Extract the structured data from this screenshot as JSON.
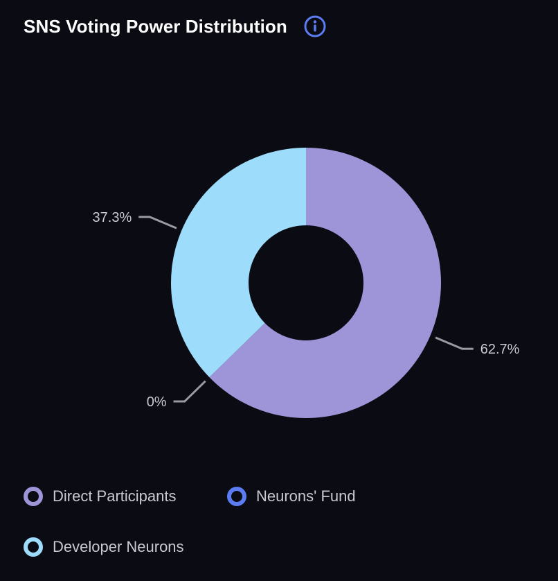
{
  "title": "SNS Voting Power Distribution",
  "info_icon": "info-circle-icon",
  "colors": {
    "background": "#0b0b14",
    "direct_participants": "#9d95d8",
    "neurons_fund": "#5b7cf2",
    "developer_neurons": "#9ddcfb",
    "label_text": "#c9c9d3",
    "leader_line": "#9a9aa3",
    "info_icon": "#5b7cf2"
  },
  "chart_data": {
    "type": "pie",
    "donut": true,
    "title": "SNS Voting Power Distribution",
    "series": [
      {
        "name": "Direct Participants",
        "value": 62.7,
        "label": "62.7%",
        "color": "#9d95d8"
      },
      {
        "name": "Neurons' Fund",
        "value": 0,
        "label": "0%",
        "color": "#5b7cf2"
      },
      {
        "name": "Developer Neurons",
        "value": 37.3,
        "label": "37.3%",
        "color": "#9ddcfb"
      }
    ],
    "legend_placement": "bottom"
  },
  "legend": [
    {
      "label": "Direct Participants",
      "color": "#9d95d8"
    },
    {
      "label": "Neurons' Fund",
      "color": "#5b7cf2"
    },
    {
      "label": "Developer Neurons",
      "color": "#9ddcfb"
    }
  ]
}
